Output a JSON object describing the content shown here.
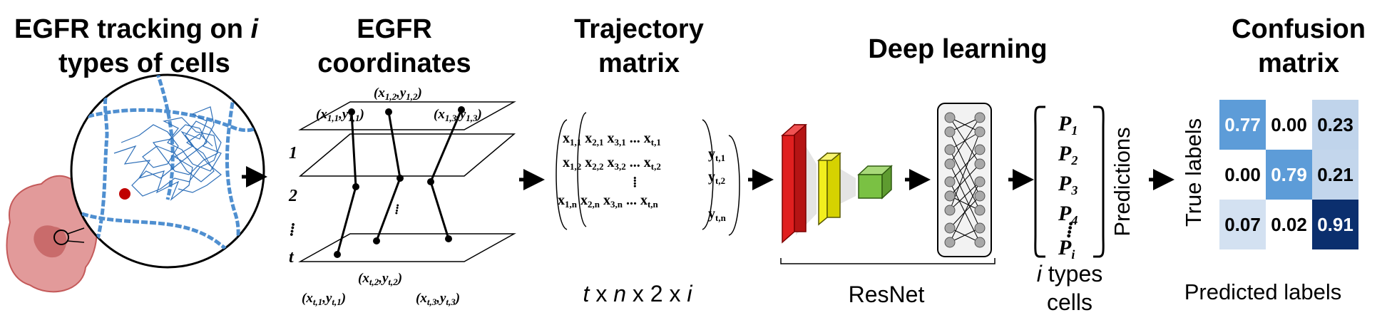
{
  "titles": {
    "tracking_line1": "EGFR tracking on ",
    "tracking_i": "i",
    "tracking_line2": "types of cells",
    "coords_line1": "EGFR",
    "coords_line2": "coordinates",
    "traj_line1": "Trajectory",
    "traj_line2": "matrix",
    "deep": "Deep learning",
    "conf_line1": "Confusion",
    "conf_line2": "matrix"
  },
  "coordinates_panel": {
    "top_x": "x",
    "top_y": "y",
    "sub_11": "1,1",
    "sub_12": "1,2",
    "sub_13": "1,3",
    "sub_t1": "t,1",
    "sub_t2": "t,2",
    "sub_t3": "t,3",
    "frame_labels": [
      "1",
      "2",
      "⁞",
      "t"
    ],
    "dots": "⁞"
  },
  "trajectory_matrix": {
    "row1": "x1,1  x2,1 x3,1 ... xt,1",
    "y_labels": [
      "yt,1",
      "yt,2",
      "yt,n"
    ],
    "dimension_t": "t",
    "dimension_x1": " x ",
    "dimension_n": "n",
    "dimension_x2": " x 2 x ",
    "dimension_i": "i"
  },
  "network": {
    "label": "ResNet"
  },
  "predictions": {
    "items": [
      "P",
      "P",
      "P",
      "P",
      "P"
    ],
    "subs": [
      "1",
      "2",
      "3",
      "4",
      "i"
    ],
    "vdots": "⁞",
    "side_label": "Predictions",
    "below_i": "i",
    "below_line1": " types",
    "below_line2": "cells"
  },
  "confusion": {
    "values": [
      [
        "0.77",
        "0.00",
        "0.23"
      ],
      [
        "0.00",
        "0.79",
        "0.21"
      ],
      [
        "0.07",
        "0.02",
        "0.91"
      ]
    ],
    "shade": [
      [
        0.77,
        0.0,
        0.23
      ],
      [
        0.0,
        0.79,
        0.21
      ],
      [
        0.07,
        0.02,
        0.91
      ]
    ],
    "true_label": "True labels",
    "pred_label": "Predicted labels"
  },
  "colors": {
    "arrow": "#000000",
    "cell_fill": "#e29a9a",
    "cell_stroke": "#c45a5a",
    "nucleus": "#c96b6b",
    "filament": "#4f8fd0",
    "track": "#2e6fb8",
    "red_dot": "#c00000",
    "block_red": "#e01f1f",
    "block_yellow": "#f2ee1e",
    "block_green": "#7ac143",
    "node": "#a8a8a8",
    "cm_low": "#dbe6f3",
    "cm_mid": "#5d9cd8",
    "cm_high": "#0b2f6e"
  }
}
